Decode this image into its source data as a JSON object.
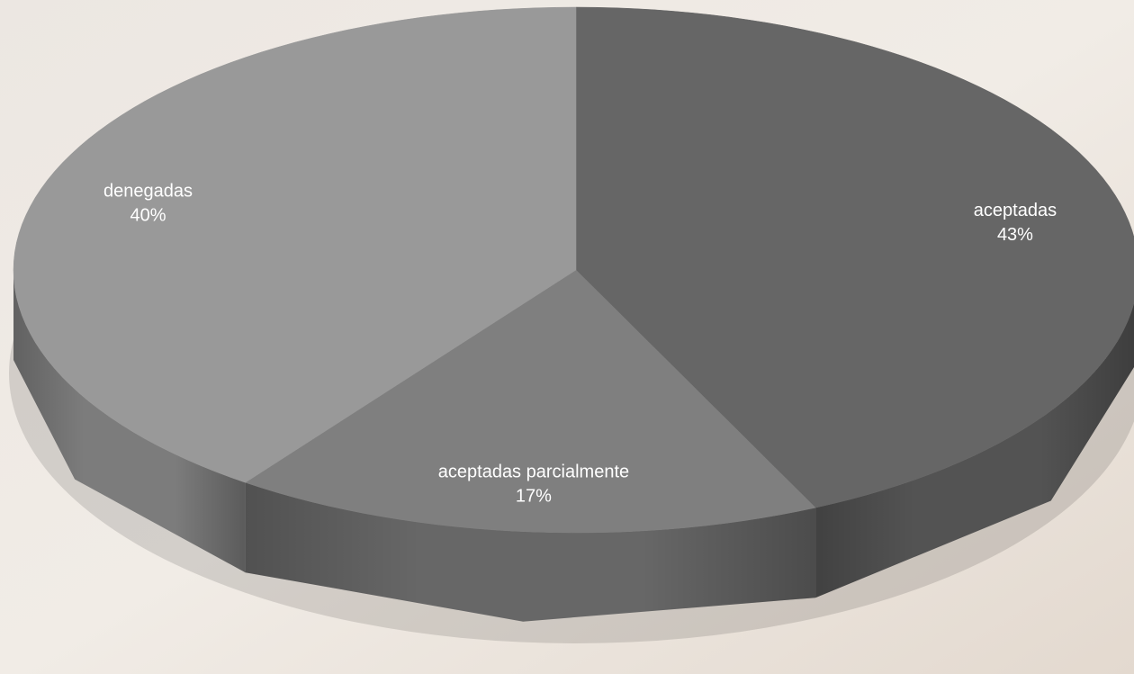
{
  "chart_data": {
    "type": "pie",
    "categories": [
      "aceptadas",
      "aceptadas parcialmente",
      "denegadas"
    ],
    "values": [
      43,
      17,
      40
    ],
    "value_labels": [
      "43%",
      "17%",
      "40%"
    ],
    "colors": [
      "#666666",
      "#7f7f7f",
      "#999999"
    ]
  }
}
